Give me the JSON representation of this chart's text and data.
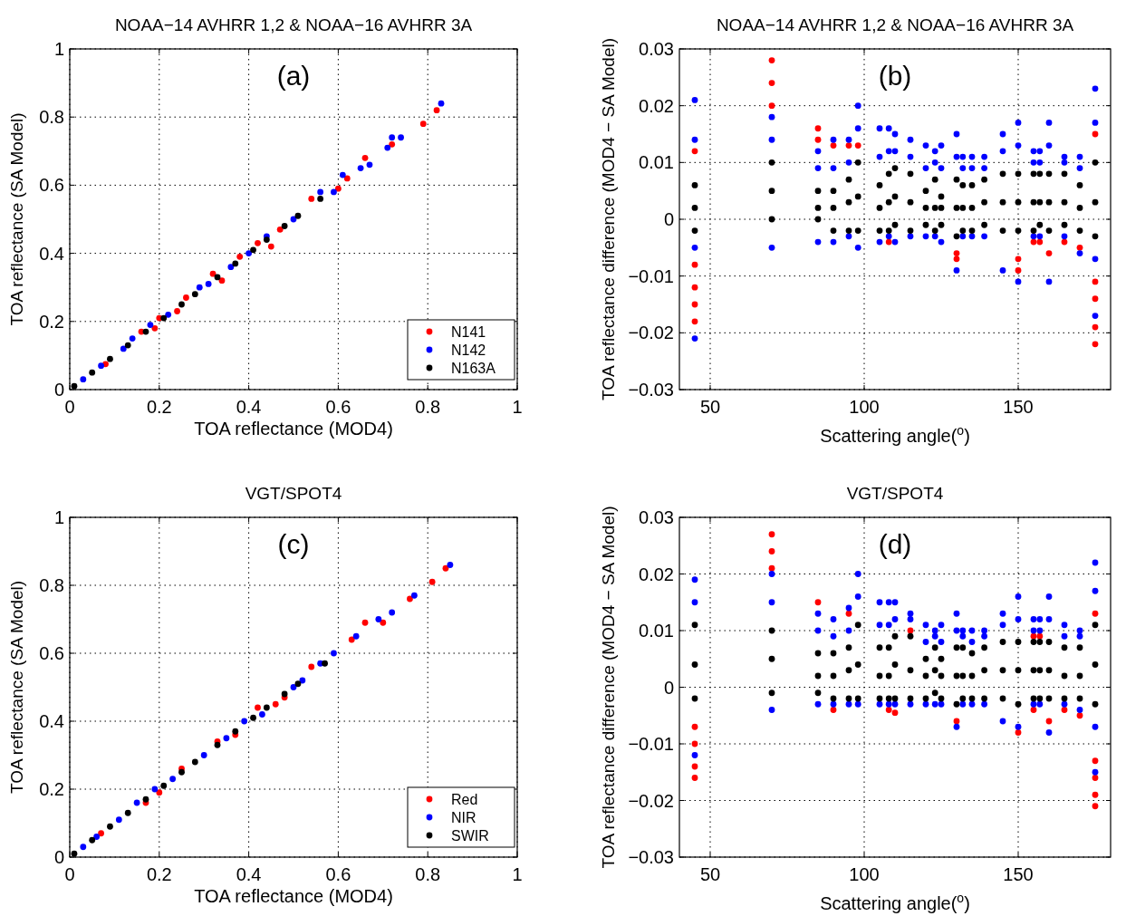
{
  "chart_data": [
    {
      "type": "scatter",
      "title": "NOAA−14 AVHRR 1,2 & NOAA−16 AVHRR 3A",
      "xlabel": "TOA reflectance (MOD4)",
      "ylabel": "TOA reflectance (SA Model)",
      "annotations": [
        "(a)"
      ],
      "xlim": [
        0,
        1
      ],
      "ylim": [
        0,
        1
      ],
      "xticks": [
        0,
        0.2,
        0.4,
        0.6,
        0.8,
        1
      ],
      "yticks": [
        0,
        0.2,
        0.4,
        0.6,
        0.8,
        1
      ],
      "grid": true,
      "marker": "circle",
      "legend": "bottom right",
      "series": [
        {
          "name": "N141",
          "color": "#ff0000",
          "x": [
            0.08,
            0.16,
            0.19,
            0.2,
            0.24,
            0.26,
            0.32,
            0.34,
            0.38,
            0.42,
            0.45,
            0.47,
            0.54,
            0.6,
            0.62,
            0.66,
            0.72,
            0.79,
            0.82
          ],
          "values": [
            0.075,
            0.17,
            0.18,
            0.21,
            0.23,
            0.27,
            0.34,
            0.32,
            0.39,
            0.43,
            0.42,
            0.47,
            0.56,
            0.59,
            0.62,
            0.68,
            0.72,
            0.78,
            0.82
          ]
        },
        {
          "name": "N142",
          "color": "#0000ff",
          "x": [
            0.03,
            0.07,
            0.12,
            0.14,
            0.18,
            0.22,
            0.29,
            0.31,
            0.36,
            0.4,
            0.44,
            0.5,
            0.56,
            0.59,
            0.61,
            0.65,
            0.67,
            0.71,
            0.72,
            0.74,
            0.83
          ],
          "values": [
            0.03,
            0.07,
            0.12,
            0.15,
            0.19,
            0.22,
            0.3,
            0.31,
            0.36,
            0.4,
            0.45,
            0.5,
            0.58,
            0.58,
            0.63,
            0.65,
            0.66,
            0.71,
            0.74,
            0.74,
            0.84
          ]
        },
        {
          "name": "N163A",
          "color": "#000000",
          "x": [
            0.01,
            0.05,
            0.09,
            0.13,
            0.17,
            0.21,
            0.25,
            0.28,
            0.33,
            0.37,
            0.41,
            0.44,
            0.48,
            0.51,
            0.56
          ],
          "values": [
            0.01,
            0.05,
            0.09,
            0.13,
            0.17,
            0.21,
            0.25,
            0.28,
            0.33,
            0.37,
            0.41,
            0.44,
            0.48,
            0.51,
            0.56
          ]
        }
      ]
    },
    {
      "type": "scatter",
      "title": "NOAA−14 AVHRR 1,2 & NOAA−16 AVHRR 3A",
      "xlabel": "Scattering angle($^{o}$)",
      "ylabel": "TOA reflectance difference (MOD4 − SA Model)",
      "annotations": [
        "(b)"
      ],
      "xlim": [
        40,
        180
      ],
      "ylim": [
        -0.03,
        0.03
      ],
      "xticks": [
        50,
        100,
        150
      ],
      "yticks": [
        -0.03,
        -0.02,
        -0.01,
        0,
        0.01,
        0.02,
        0.03
      ],
      "grid": true,
      "marker": "circle",
      "series": [
        {
          "color": "#ff0000",
          "x": [
            45,
            45,
            45,
            45,
            45,
            70,
            70,
            70,
            85,
            85,
            90,
            95,
            98,
            108,
            130,
            130,
            150,
            150,
            155,
            157,
            160,
            165,
            170,
            175,
            175,
            175,
            175,
            175
          ],
          "values": [
            -0.018,
            -0.015,
            -0.012,
            -0.008,
            0.012,
            0.02,
            0.024,
            0.028,
            0.014,
            0.016,
            0.013,
            0.013,
            0.013,
            -0.004,
            -0.007,
            -0.006,
            -0.009,
            -0.007,
            -0.004,
            -0.004,
            -0.006,
            -0.004,
            -0.005,
            -0.022,
            -0.019,
            -0.014,
            -0.011,
            0.015
          ]
        },
        {
          "color": "#0000ff",
          "x": [
            45,
            45,
            45,
            45,
            70,
            70,
            70,
            85,
            85,
            85,
            90,
            90,
            90,
            95,
            95,
            95,
            98,
            98,
            98,
            105,
            105,
            105,
            108,
            108,
            108,
            110,
            110,
            110,
            115,
            115,
            115,
            120,
            120,
            120,
            123,
            123,
            123,
            125,
            125,
            125,
            130,
            130,
            130,
            132,
            132,
            132,
            135,
            135,
            135,
            139,
            139,
            139,
            145,
            145,
            145,
            150,
            150,
            150,
            155,
            155,
            155,
            157,
            157,
            157,
            160,
            160,
            160,
            165,
            165,
            165,
            170,
            170,
            170,
            175,
            175,
            175,
            175
          ],
          "values": [
            -0.021,
            -0.005,
            0.014,
            0.021,
            -0.005,
            0.014,
            0.018,
            -0.004,
            0.009,
            0.012,
            -0.004,
            0.009,
            0.014,
            -0.003,
            0.01,
            0.014,
            -0.005,
            0.016,
            0.02,
            -0.004,
            0.011,
            0.016,
            -0.003,
            0.012,
            0.016,
            -0.004,
            0.012,
            0.015,
            -0.003,
            0.011,
            0.014,
            -0.003,
            0.009,
            0.013,
            -0.003,
            0.01,
            0.012,
            -0.004,
            0.009,
            0.013,
            -0.009,
            0.011,
            0.015,
            -0.003,
            0.009,
            0.011,
            -0.003,
            0.009,
            0.011,
            -0.003,
            0.009,
            0.011,
            -0.009,
            0.012,
            0.015,
            -0.011,
            0.013,
            0.017,
            -0.003,
            0.01,
            0.012,
            -0.003,
            0.01,
            0.012,
            -0.011,
            0.013,
            0.017,
            -0.003,
            0.01,
            0.011,
            -0.006,
            0.009,
            0.011,
            -0.017,
            -0.007,
            0.017,
            0.023
          ]
        },
        {
          "color": "#000000",
          "x": [
            45,
            45,
            45,
            70,
            70,
            70,
            85,
            85,
            85,
            90,
            90,
            90,
            95,
            95,
            95,
            98,
            98,
            98,
            105,
            105,
            105,
            108,
            108,
            108,
            110,
            110,
            110,
            115,
            115,
            115,
            120,
            120,
            120,
            123,
            123,
            123,
            125,
            125,
            125,
            130,
            130,
            130,
            132,
            132,
            132,
            135,
            135,
            135,
            139,
            139,
            139,
            145,
            145,
            145,
            150,
            150,
            150,
            155,
            155,
            155,
            157,
            157,
            157,
            160,
            160,
            160,
            165,
            165,
            165,
            170,
            170,
            170,
            175,
            175,
            175
          ],
          "values": [
            -0.002,
            0.002,
            0.006,
            0,
            0.005,
            0.01,
            0,
            0.002,
            0.005,
            -0.002,
            0.002,
            0.005,
            -0.002,
            0.003,
            0.007,
            -0.002,
            0.004,
            0.01,
            -0.002,
            0.002,
            0.006,
            -0.002,
            0.003,
            0.008,
            -0.001,
            0.004,
            0.009,
            -0.002,
            0.003,
            0.008,
            -0.001,
            0.002,
            0.005,
            -0.002,
            0.002,
            0.007,
            -0.001,
            0.002,
            0.004,
            -0.003,
            0.002,
            0.007,
            -0.002,
            0.002,
            0.006,
            -0.002,
            0.002,
            0.006,
            -0.001,
            0.003,
            0.007,
            -0.002,
            0.003,
            0.008,
            -0.002,
            0.003,
            0.008,
            -0.002,
            0.003,
            0.008,
            -0.001,
            0.003,
            0.008,
            -0.002,
            0.003,
            0.008,
            -0.001,
            0.003,
            0.008,
            -0.002,
            0.002,
            0.006,
            -0.003,
            0.003,
            0.01
          ]
        }
      ]
    },
    {
      "type": "scatter",
      "title": "VGT/SPOT4",
      "xlabel": "TOA reflectance (MOD4)",
      "ylabel": "TOA reflectance (SA Model)",
      "annotations": [
        "(c)"
      ],
      "xlim": [
        0,
        1
      ],
      "ylim": [
        0,
        1
      ],
      "xticks": [
        0,
        0.2,
        0.4,
        0.6,
        0.8,
        1
      ],
      "yticks": [
        0,
        0.2,
        0.4,
        0.6,
        0.8,
        1
      ],
      "grid": true,
      "marker": "circle",
      "legend": "bottom right",
      "series": [
        {
          "name": "Red",
          "color": "#ff0000",
          "x": [
            0.07,
            0.17,
            0.2,
            0.25,
            0.33,
            0.37,
            0.42,
            0.46,
            0.48,
            0.54,
            0.63,
            0.66,
            0.7,
            0.76,
            0.81,
            0.84
          ],
          "values": [
            0.07,
            0.16,
            0.19,
            0.26,
            0.34,
            0.36,
            0.44,
            0.45,
            0.47,
            0.56,
            0.64,
            0.69,
            0.69,
            0.76,
            0.81,
            0.85
          ]
        },
        {
          "name": "NIR",
          "color": "#0000ff",
          "x": [
            0.03,
            0.06,
            0.11,
            0.15,
            0.19,
            0.23,
            0.3,
            0.35,
            0.39,
            0.43,
            0.5,
            0.52,
            0.56,
            0.59,
            0.64,
            0.69,
            0.72,
            0.77,
            0.85
          ],
          "values": [
            0.03,
            0.06,
            0.11,
            0.16,
            0.2,
            0.23,
            0.3,
            0.35,
            0.4,
            0.42,
            0.5,
            0.52,
            0.57,
            0.6,
            0.65,
            0.7,
            0.72,
            0.77,
            0.86
          ]
        },
        {
          "name": "SWIR",
          "color": "#000000",
          "x": [
            0.01,
            0.05,
            0.09,
            0.13,
            0.17,
            0.21,
            0.25,
            0.28,
            0.33,
            0.37,
            0.41,
            0.44,
            0.48,
            0.51,
            0.57
          ],
          "values": [
            0.01,
            0.05,
            0.09,
            0.13,
            0.17,
            0.21,
            0.25,
            0.28,
            0.33,
            0.37,
            0.41,
            0.44,
            0.48,
            0.51,
            0.57
          ]
        }
      ]
    },
    {
      "type": "scatter",
      "title": "VGT/SPOT4",
      "xlabel": "Scattering angle($^{o}$)",
      "ylabel": "TOA reflectance difference (MOD4 − SA Model)",
      "annotations": [
        "(d)"
      ],
      "xlim": [
        40,
        180
      ],
      "ylim": [
        -0.03,
        0.03
      ],
      "xticks": [
        50,
        100,
        150
      ],
      "yticks": [
        -0.03,
        -0.02,
        -0.01,
        0,
        0.01,
        0.02,
        0.03
      ],
      "grid": true,
      "marker": "circle",
      "series": [
        {
          "color": "#ff0000",
          "x": [
            45,
            45,
            45,
            45,
            70,
            70,
            70,
            85,
            90,
            95,
            108,
            110,
            115,
            130,
            150,
            155,
            155,
            157,
            160,
            165,
            170,
            175,
            175,
            175,
            175,
            175
          ],
          "values": [
            -0.016,
            -0.014,
            -0.01,
            -0.007,
            0.021,
            0.024,
            0.027,
            0.015,
            -0.004,
            0.013,
            -0.004,
            -0.0045,
            0.01,
            -0.006,
            -0.008,
            -0.004,
            0.009,
            0.009,
            -0.006,
            -0.004,
            -0.005,
            -0.021,
            -0.019,
            -0.016,
            -0.013,
            0.013
          ]
        },
        {
          "color": "#0000ff",
          "x": [
            45,
            45,
            45,
            70,
            70,
            70,
            85,
            85,
            85,
            90,
            90,
            90,
            95,
            95,
            95,
            98,
            98,
            98,
            105,
            105,
            105,
            108,
            108,
            108,
            110,
            110,
            110,
            115,
            115,
            115,
            120,
            120,
            120,
            123,
            123,
            123,
            125,
            125,
            125,
            130,
            130,
            130,
            132,
            132,
            132,
            135,
            135,
            135,
            139,
            139,
            139,
            145,
            145,
            145,
            150,
            150,
            150,
            155,
            155,
            155,
            157,
            157,
            157,
            160,
            160,
            160,
            165,
            165,
            165,
            170,
            170,
            170,
            175,
            175,
            175,
            175
          ],
          "values": [
            -0.012,
            0.015,
            0.019,
            -0.004,
            0.015,
            0.02,
            -0.003,
            0.01,
            0.013,
            -0.003,
            0.009,
            0.012,
            -0.003,
            0.01,
            0.014,
            -0.003,
            0.016,
            0.02,
            -0.003,
            0.011,
            0.015,
            -0.003,
            0.011,
            0.015,
            -0.003,
            0.012,
            0.015,
            -0.003,
            0.012,
            0.013,
            -0.003,
            0.008,
            0.011,
            -0.003,
            0.009,
            0.01,
            -0.003,
            0.008,
            0.011,
            -0.007,
            0.01,
            0.013,
            -0.003,
            0.009,
            0.01,
            -0.003,
            0.008,
            0.01,
            -0.003,
            0.009,
            0.01,
            -0.006,
            0.011,
            0.013,
            -0.007,
            0.012,
            0.016,
            -0.003,
            0.01,
            0.012,
            -0.003,
            0.01,
            0.012,
            -0.008,
            0.012,
            0.016,
            -0.003,
            0.009,
            0.011,
            -0.004,
            0.009,
            0.01,
            -0.015,
            -0.007,
            0.017,
            0.022
          ]
        },
        {
          "color": "#000000",
          "x": [
            45,
            45,
            45,
            70,
            70,
            70,
            85,
            85,
            85,
            90,
            90,
            90,
            95,
            95,
            95,
            98,
            98,
            98,
            105,
            105,
            105,
            108,
            108,
            108,
            110,
            110,
            110,
            115,
            115,
            115,
            120,
            120,
            120,
            123,
            123,
            123,
            125,
            125,
            125,
            130,
            130,
            130,
            132,
            132,
            132,
            135,
            135,
            135,
            139,
            139,
            139,
            145,
            145,
            145,
            150,
            150,
            150,
            155,
            155,
            155,
            157,
            157,
            157,
            160,
            160,
            160,
            165,
            165,
            165,
            170,
            170,
            170,
            175,
            175,
            175
          ],
          "values": [
            -0.002,
            0.004,
            0.011,
            -0.001,
            0.005,
            0.01,
            -0.001,
            0.002,
            0.006,
            -0.002,
            0.002,
            0.006,
            -0.002,
            0.003,
            0.007,
            -0.002,
            0.004,
            0.011,
            -0.002,
            0.002,
            0.007,
            -0.002,
            0.002,
            0.007,
            -0.002,
            0.004,
            0.009,
            -0.002,
            0.003,
            0.009,
            -0.002,
            0.002,
            0.005,
            -0.001,
            0.003,
            0.007,
            -0.002,
            0.002,
            0.005,
            -0.003,
            0.002,
            0.007,
            -0.002,
            0.002,
            0.007,
            -0.002,
            0.002,
            0.006,
            -0.002,
            0.003,
            0.007,
            -0.002,
            0.003,
            0.008,
            -0.003,
            0.003,
            0.008,
            -0.002,
            0.003,
            0.008,
            -0.002,
            0.003,
            0.008,
            -0.002,
            0.003,
            0.008,
            -0.002,
            0.002,
            0.007,
            -0.002,
            0.002,
            0.007,
            -0.003,
            0.004,
            0.011
          ]
        }
      ]
    }
  ]
}
